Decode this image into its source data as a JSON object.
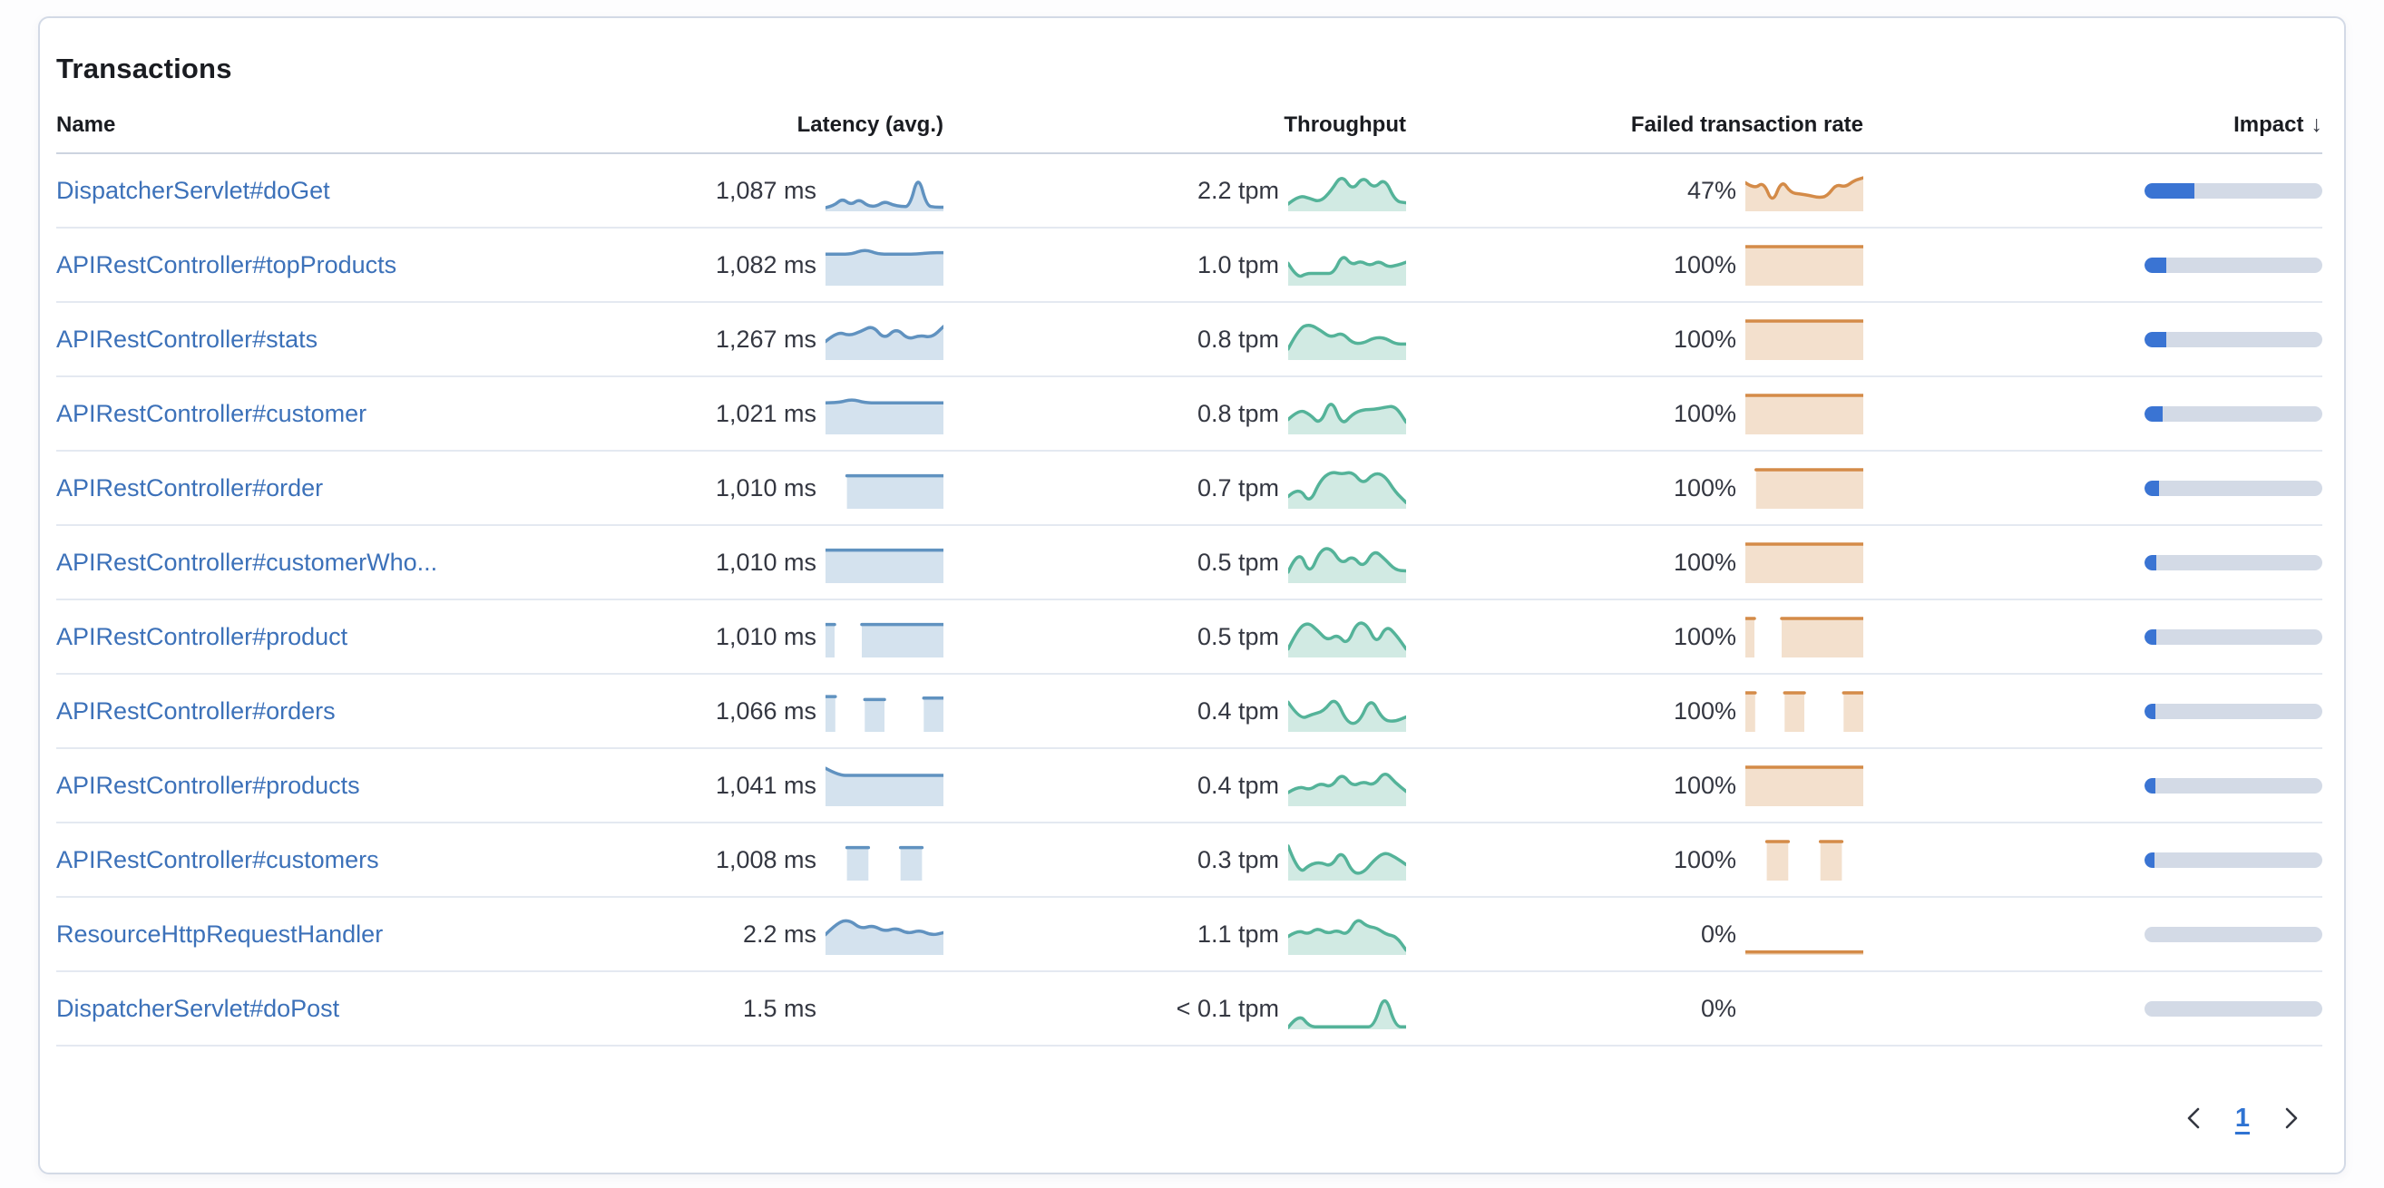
{
  "panel": {
    "title": "Transactions"
  },
  "table": {
    "columns": [
      "Name",
      "Latency (avg.)",
      "Throughput",
      "Failed transaction rate",
      "Impact"
    ],
    "sort_column": "Impact",
    "sort_direction": "desc",
    "rows": [
      {
        "name": "DispatcherServlet#doGet",
        "latency": "1,087 ms",
        "throughput": "2.2 tpm",
        "failed_rate": "47%",
        "impact_pct": 28,
        "latency_spark": [
          0.05,
          0.1,
          0.3,
          0.12,
          0.28,
          0.1,
          0.08,
          0.22,
          0.12,
          0.08,
          0.08,
          0.95,
          0.1,
          0.06,
          0.06
        ],
        "throughput_spark": [
          0.15,
          0.38,
          0.3,
          0.2,
          0.5,
          0.95,
          0.5,
          0.9,
          0.55,
          0.85,
          0.22,
          0.18
        ],
        "failed_spark": [
          0.72,
          0.55,
          0.75,
          0.15,
          0.8,
          0.45,
          0.42,
          0.38,
          0.32,
          0.35,
          0.68,
          0.6,
          0.78,
          0.85
        ]
      },
      {
        "name": "APIRestController#topProducts",
        "latency": "1,082 ms",
        "throughput": "1.0 tpm",
        "failed_rate": "100%",
        "impact_pct": 12,
        "latency_spark": [
          0.8,
          0.8,
          0.8,
          0.93,
          0.8,
          0.8,
          0.8,
          0.8,
          0.84,
          0.84
        ],
        "throughput_spark": [
          0.55,
          0.15,
          0.28,
          0.28,
          0.28,
          0.28,
          0.8,
          0.5,
          0.62,
          0.48,
          0.62,
          0.45,
          0.5,
          0.58
        ],
        "failed_spark": [
          1,
          1,
          1,
          1,
          1,
          1,
          1,
          1,
          1,
          1,
          1,
          1
        ]
      },
      {
        "name": "APIRestController#stats",
        "latency": "1,267 ms",
        "throughput": "0.8 tpm",
        "failed_rate": "100%",
        "impact_pct": 12,
        "latency_spark": [
          0.45,
          0.72,
          0.6,
          0.72,
          0.88,
          0.5,
          0.82,
          0.5,
          0.62,
          0.55,
          0.85
        ],
        "throughput_spark": [
          0.25,
          0.8,
          0.92,
          0.75,
          0.55,
          0.7,
          0.4,
          0.4,
          0.55,
          0.55,
          0.38,
          0.38
        ],
        "failed_spark": [
          1,
          1,
          1,
          1,
          1,
          1,
          1,
          1,
          1,
          1,
          1,
          1
        ]
      },
      {
        "name": "APIRestController#customer",
        "latency": "1,021 ms",
        "throughput": "0.8 tpm",
        "failed_rate": "100%",
        "impact_pct": 10,
        "latency_spark": [
          0.8,
          0.8,
          0.9,
          0.8,
          0.8,
          0.8,
          0.8,
          0.8,
          0.8,
          0.8
        ],
        "throughput_spark": [
          0.35,
          0.62,
          0.5,
          0.2,
          0.95,
          0.18,
          0.5,
          0.62,
          0.62,
          0.68,
          0.72,
          0.28
        ],
        "failed_spark": [
          1,
          1,
          1,
          1,
          1,
          1,
          1,
          1,
          1,
          1,
          1,
          1
        ]
      },
      {
        "name": "APIRestController#order",
        "latency": "1,010 ms",
        "throughput": "0.7 tpm",
        "failed_rate": "100%",
        "impact_pct": 8,
        "latency_spark": [
          null,
          null,
          0.84,
          0.84,
          0.84,
          0.84,
          0.84,
          0.84,
          0.84,
          0.84,
          0.84,
          0.84
        ],
        "throughput_spark": [
          0.28,
          0.55,
          0.08,
          0.72,
          0.95,
          0.88,
          0.95,
          0.6,
          0.92,
          0.85,
          0.4,
          0.12
        ],
        "failed_spark": [
          null,
          1,
          1,
          1,
          1,
          1,
          1,
          1,
          1,
          1,
          1,
          1
        ]
      },
      {
        "name": "APIRestController#customerWho...",
        "latency": "1,010 ms",
        "throughput": "0.5 tpm",
        "failed_rate": "100%",
        "impact_pct": 6.5,
        "latency_spark": [
          0.84,
          0.84,
          0.84,
          0.84,
          0.84,
          0.84,
          0.84,
          0.84,
          0.84,
          0.84,
          0.84,
          0.84
        ],
        "throughput_spark": [
          0.25,
          0.9,
          0.15,
          0.85,
          0.9,
          0.45,
          0.7,
          0.35,
          0.85,
          0.6,
          0.3,
          0.28
        ],
        "failed_spark": [
          1,
          1,
          1,
          1,
          1,
          1,
          1,
          1,
          1,
          1,
          1,
          1
        ]
      },
      {
        "name": "APIRestController#product",
        "latency": "1,010 ms",
        "throughput": "0.5 tpm",
        "failed_rate": "100%",
        "impact_pct": 6.5,
        "latency_spark": [
          0.84,
          0.84,
          null,
          null,
          0.84,
          0.84,
          0.84,
          0.84,
          0.84,
          0.84,
          0.84,
          0.84,
          0.84,
          0.84
        ],
        "throughput_spark": [
          0.18,
          0.72,
          0.9,
          0.68,
          0.4,
          0.58,
          0.28,
          0.9,
          0.85,
          0.3,
          0.82,
          0.55,
          0.18
        ],
        "failed_spark": [
          1,
          1,
          null,
          null,
          1,
          1,
          1,
          1,
          1,
          1,
          1,
          1,
          1,
          1
        ]
      },
      {
        "name": "APIRestController#orders",
        "latency": "1,066 ms",
        "throughput": "0.4 tpm",
        "failed_rate": "100%",
        "impact_pct": 6,
        "latency_spark": [
          0.9,
          0.9,
          null,
          null,
          0.82,
          0.82,
          0.82,
          null,
          null,
          null,
          0.86,
          0.86,
          0.86
        ],
        "throughput_spark": [
          0.75,
          0.28,
          0.42,
          0.5,
          0.9,
          0.18,
          0.18,
          0.9,
          0.28,
          0.22,
          0.35
        ],
        "failed_spark": [
          1,
          1,
          null,
          null,
          1,
          1,
          1,
          null,
          null,
          null,
          1,
          1,
          1
        ]
      },
      {
        "name": "APIRestController#products",
        "latency": "1,041 ms",
        "throughput": "0.4 tpm",
        "failed_rate": "100%",
        "impact_pct": 6,
        "latency_spark": [
          0.97,
          0.78,
          0.78,
          0.78,
          0.78,
          0.78,
          0.78,
          0.78,
          0.78,
          0.78
        ],
        "throughput_spark": [
          0.32,
          0.5,
          0.38,
          0.58,
          0.45,
          0.85,
          0.48,
          0.62,
          0.5,
          0.9,
          0.58,
          0.35
        ],
        "failed_spark": [
          1,
          1,
          1,
          1,
          1,
          1,
          1,
          1,
          1,
          1,
          1,
          1
        ]
      },
      {
        "name": "APIRestController#customers",
        "latency": "1,008 ms",
        "throughput": "0.3 tpm",
        "failed_rate": "100%",
        "impact_pct": 5.5,
        "latency_spark": [
          null,
          null,
          0.84,
          0.84,
          0.84,
          null,
          null,
          0.84,
          0.84,
          0.84,
          null,
          null
        ],
        "throughput_spark": [
          0.88,
          0.12,
          0.38,
          0.45,
          0.32,
          0.78,
          0.15,
          0.15,
          0.5,
          0.72,
          0.58,
          0.38
        ],
        "failed_spark": [
          null,
          null,
          1,
          1,
          1,
          null,
          null,
          1,
          1,
          1,
          null,
          null
        ]
      },
      {
        "name": "ResourceHttpRequestHandler",
        "latency": "2.2 ms",
        "throughput": "1.1 tpm",
        "failed_rate": "0%",
        "impact_pct": 0,
        "latency_spark": [
          0.5,
          0.82,
          0.9,
          0.65,
          0.75,
          0.58,
          0.68,
          0.52,
          0.62,
          0.48,
          0.55
        ],
        "throughput_spark": [
          0.45,
          0.62,
          0.5,
          0.68,
          0.52,
          0.62,
          0.48,
          0.95,
          0.72,
          0.68,
          0.5,
          0.45,
          0.08
        ],
        "failed_spark": [
          0.03,
          0.03,
          0.03,
          0.03,
          0.03,
          0.03,
          0.03,
          0.03,
          0.03,
          0.03,
          0.03,
          0.03
        ]
      },
      {
        "name": "DispatcherServlet#doPost",
        "latency": "1.5 ms",
        "throughput": "< 0.1 tpm",
        "failed_rate": "0%",
        "impact_pct": 0,
        "latency_spark": [],
        "throughput_spark": [
          0.0,
          0.38,
          0.02,
          0.02,
          0.02,
          0.02,
          0.02,
          0.02,
          0.02,
          0.95,
          0.02,
          0.02
        ],
        "failed_spark": []
      }
    ]
  },
  "pagination": {
    "current_page": "1"
  },
  "icons": {
    "sort_desc": "↓"
  },
  "colors": {
    "link": "#3c71b9",
    "latency_line": "#6092c0",
    "throughput_line": "#54b399",
    "failed_line": "#d48b48",
    "impact_fill": "#3a74d3",
    "impact_track": "#d3dae6"
  }
}
